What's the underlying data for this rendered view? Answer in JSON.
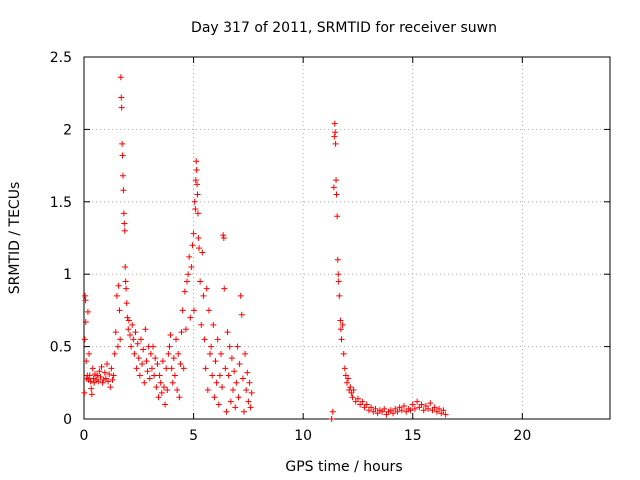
{
  "chart_data": {
    "type": "scatter",
    "title": "Day 317 of 2011, SRMTID for receiver suwn",
    "xlabel": "GPS time / hours",
    "ylabel": "SRMTID / TECUs",
    "xlim": [
      0,
      24
    ],
    "ylim": [
      0,
      2.5
    ],
    "x_ticks": [
      0,
      5,
      10,
      15,
      20
    ],
    "x_tick_labels": [
      "0",
      "5",
      "10",
      "15",
      "20"
    ],
    "y_ticks": [
      0,
      0.5,
      1,
      1.5,
      2,
      2.5
    ],
    "y_tick_labels": [
      "0",
      "0.5",
      "1",
      "1.5",
      "2",
      "2.5"
    ],
    "grid": true,
    "marker": "+",
    "series": [
      {
        "name": "SRMTID",
        "color": "#ff0000",
        "points": [
          [
            0.02,
            0.18
          ],
          [
            0.04,
            0.55
          ],
          [
            0.05,
            0.85
          ],
          [
            0.07,
            0.82
          ],
          [
            0.08,
            0.67
          ],
          [
            0.1,
            0.4
          ],
          [
            0.12,
            0.28
          ],
          [
            0.15,
            0.3
          ],
          [
            0.18,
            0.74
          ],
          [
            0.2,
            0.27
          ],
          [
            0.23,
            0.45
          ],
          [
            0.26,
            0.3
          ],
          [
            0.3,
            0.26
          ],
          [
            0.33,
            0.21
          ],
          [
            0.36,
            0.17
          ],
          [
            0.4,
            0.35
          ],
          [
            0.43,
            0.28
          ],
          [
            0.46,
            0.25
          ],
          [
            0.5,
            0.31
          ],
          [
            0.55,
            0.27
          ],
          [
            0.6,
            0.3
          ],
          [
            0.65,
            0.26
          ],
          [
            0.7,
            0.33
          ],
          [
            0.75,
            0.29
          ],
          [
            0.8,
            0.36
          ],
          [
            0.85,
            0.25
          ],
          [
            0.9,
            0.27
          ],
          [
            0.95,
            0.32
          ],
          [
            1.0,
            0.28
          ],
          [
            1.05,
            0.38
          ],
          [
            1.1,
            0.26
          ],
          [
            1.15,
            0.31
          ],
          [
            1.2,
            0.22
          ],
          [
            1.25,
            0.35
          ],
          [
            1.3,
            0.27
          ],
          [
            1.35,
            0.3
          ],
          [
            1.4,
            0.45
          ],
          [
            1.45,
            0.6
          ],
          [
            1.5,
            0.85
          ],
          [
            1.55,
            0.5
          ],
          [
            1.58,
            0.92
          ],
          [
            1.62,
            0.75
          ],
          [
            1.65,
            0.55
          ],
          [
            1.68,
            2.36
          ],
          [
            1.7,
            2.22
          ],
          [
            1.72,
            2.15
          ],
          [
            1.74,
            1.9
          ],
          [
            1.76,
            1.82
          ],
          [
            1.78,
            1.68
          ],
          [
            1.8,
            1.58
          ],
          [
            1.82,
            1.42
          ],
          [
            1.84,
            1.35
          ],
          [
            1.86,
            1.3
          ],
          [
            1.88,
            1.05
          ],
          [
            1.9,
            0.95
          ],
          [
            1.92,
            0.9
          ],
          [
            1.95,
            0.8
          ],
          [
            1.98,
            0.7
          ],
          [
            2.02,
            0.62
          ],
          [
            2.05,
            0.68
          ],
          [
            2.1,
            0.58
          ],
          [
            2.15,
            0.5
          ],
          [
            2.2,
            0.65
          ],
          [
            2.25,
            0.55
          ],
          [
            2.3,
            0.45
          ],
          [
            2.35,
            0.6
          ],
          [
            2.4,
            0.35
          ],
          [
            2.45,
            0.52
          ],
          [
            2.5,
            0.42
          ],
          [
            2.55,
            0.3
          ],
          [
            2.6,
            0.55
          ],
          [
            2.65,
            0.38
          ],
          [
            2.7,
            0.48
          ],
          [
            2.75,
            0.25
          ],
          [
            2.8,
            0.62
          ],
          [
            2.85,
            0.4
          ],
          [
            2.9,
            0.33
          ],
          [
            2.95,
            0.5
          ],
          [
            3.0,
            0.28
          ],
          [
            3.05,
            0.45
          ],
          [
            3.1,
            0.35
          ],
          [
            3.15,
            0.5
          ],
          [
            3.2,
            0.3
          ],
          [
            3.25,
            0.42
          ],
          [
            3.3,
            0.22
          ],
          [
            3.35,
            0.38
          ],
          [
            3.4,
            0.15
          ],
          [
            3.45,
            0.3
          ],
          [
            3.5,
            0.25
          ],
          [
            3.55,
            0.18
          ],
          [
            3.6,
            0.4
          ],
          [
            3.65,
            0.22
          ],
          [
            3.7,
            0.1
          ],
          [
            3.75,
            0.35
          ],
          [
            3.8,
            0.2
          ],
          [
            3.85,
            0.45
          ],
          [
            3.9,
            0.5
          ],
          [
            3.95,
            0.58
          ],
          [
            4.0,
            0.35
          ],
          [
            4.05,
            0.25
          ],
          [
            4.1,
            0.42
          ],
          [
            4.15,
            0.3
          ],
          [
            4.2,
            0.55
          ],
          [
            4.25,
            0.2
          ],
          [
            4.3,
            0.45
          ],
          [
            4.35,
            0.15
          ],
          [
            4.4,
            0.38
          ],
          [
            4.45,
            0.6
          ],
          [
            4.5,
            0.75
          ],
          [
            4.55,
            0.35
          ],
          [
            4.6,
            0.88
          ],
          [
            4.65,
            0.62
          ],
          [
            4.7,
            0.95
          ],
          [
            4.75,
            1.0
          ],
          [
            4.8,
            1.12
          ],
          [
            4.85,
            0.7
          ],
          [
            4.9,
            1.05
          ],
          [
            4.95,
            1.2
          ],
          [
            5.0,
            1.28
          ],
          [
            5.02,
            0.75
          ],
          [
            5.05,
            1.5
          ],
          [
            5.08,
            1.45
          ],
          [
            5.1,
            1.65
          ],
          [
            5.12,
            1.78
          ],
          [
            5.14,
            1.72
          ],
          [
            5.16,
            1.62
          ],
          [
            5.18,
            1.55
          ],
          [
            5.2,
            1.42
          ],
          [
            5.22,
            1.25
          ],
          [
            5.25,
            1.18
          ],
          [
            5.3,
            0.95
          ],
          [
            5.35,
            0.65
          ],
          [
            5.4,
            1.15
          ],
          [
            5.45,
            0.85
          ],
          [
            5.5,
            0.55
          ],
          [
            5.55,
            0.35
          ],
          [
            5.6,
            0.9
          ],
          [
            5.65,
            0.2
          ],
          [
            5.7,
            0.75
          ],
          [
            5.75,
            0.45
          ],
          [
            5.8,
            0.5
          ],
          [
            5.85,
            0.3
          ],
          [
            5.9,
            0.65
          ],
          [
            5.95,
            0.15
          ],
          [
            6.0,
            0.4
          ],
          [
            6.05,
            0.25
          ],
          [
            6.1,
            0.55
          ],
          [
            6.15,
            0.1
          ],
          [
            6.2,
            0.3
          ],
          [
            6.25,
            0.45
          ],
          [
            6.3,
            0.22
          ],
          [
            6.35,
            1.27
          ],
          [
            6.38,
            1.25
          ],
          [
            6.4,
            0.9
          ],
          [
            6.45,
            0.35
          ],
          [
            6.5,
            0.05
          ],
          [
            6.55,
            0.6
          ],
          [
            6.6,
            0.3
          ],
          [
            6.65,
            0.5
          ],
          [
            6.7,
            0.12
          ],
          [
            6.75,
            0.42
          ],
          [
            6.8,
            0.2
          ],
          [
            6.85,
            0.33
          ],
          [
            6.9,
            0.08
          ],
          [
            6.95,
            0.25
          ],
          [
            7.0,
            0.5
          ],
          [
            7.05,
            0.15
          ],
          [
            7.1,
            0.38
          ],
          [
            7.15,
            0.85
          ],
          [
            7.2,
            0.72
          ],
          [
            7.25,
            0.28
          ],
          [
            7.3,
            0.05
          ],
          [
            7.35,
            0.45
          ],
          [
            7.4,
            0.2
          ],
          [
            7.45,
            0.32
          ],
          [
            7.5,
            0.12
          ],
          [
            7.55,
            0.25
          ],
          [
            7.6,
            0.08
          ],
          [
            7.65,
            0.18
          ],
          [
            11.3,
            0.0
          ],
          [
            11.35,
            0.05
          ],
          [
            11.4,
            1.6
          ],
          [
            11.42,
            1.95
          ],
          [
            11.44,
            2.04
          ],
          [
            11.46,
            1.98
          ],
          [
            11.48,
            1.9
          ],
          [
            11.5,
            1.65
          ],
          [
            11.52,
            1.55
          ],
          [
            11.55,
            1.4
          ],
          [
            11.58,
            1.1
          ],
          [
            11.6,
            1.0
          ],
          [
            11.62,
            0.95
          ],
          [
            11.65,
            0.85
          ],
          [
            11.7,
            0.68
          ],
          [
            11.72,
            0.62
          ],
          [
            11.75,
            0.55
          ],
          [
            11.8,
            0.65
          ],
          [
            11.85,
            0.45
          ],
          [
            11.9,
            0.35
          ],
          [
            11.95,
            0.3
          ],
          [
            12.0,
            0.25
          ],
          [
            12.05,
            0.28
          ],
          [
            12.1,
            0.2
          ],
          [
            12.15,
            0.22
          ],
          [
            12.2,
            0.18
          ],
          [
            12.25,
            0.15
          ],
          [
            12.3,
            0.2
          ],
          [
            12.4,
            0.12
          ],
          [
            12.5,
            0.14
          ],
          [
            12.6,
            0.1
          ],
          [
            12.7,
            0.12
          ],
          [
            12.8,
            0.08
          ],
          [
            12.9,
            0.1
          ],
          [
            13.0,
            0.06
          ],
          [
            13.1,
            0.08
          ],
          [
            13.2,
            0.05
          ],
          [
            13.3,
            0.07
          ],
          [
            13.4,
            0.04
          ],
          [
            13.5,
            0.06
          ],
          [
            13.6,
            0.05
          ],
          [
            13.7,
            0.07
          ],
          [
            13.8,
            0.03
          ],
          [
            13.9,
            0.05
          ],
          [
            14.0,
            0.06
          ],
          [
            14.1,
            0.04
          ],
          [
            14.2,
            0.07
          ],
          [
            14.3,
            0.05
          ],
          [
            14.4,
            0.08
          ],
          [
            14.5,
            0.06
          ],
          [
            14.6,
            0.09
          ],
          [
            14.7,
            0.05
          ],
          [
            14.8,
            0.07
          ],
          [
            14.9,
            0.06
          ],
          [
            15.0,
            0.1
          ],
          [
            15.1,
            0.07
          ],
          [
            15.2,
            0.12
          ],
          [
            15.3,
            0.08
          ],
          [
            15.4,
            0.1
          ],
          [
            15.5,
            0.06
          ],
          [
            15.6,
            0.09
          ],
          [
            15.7,
            0.07
          ],
          [
            15.8,
            0.11
          ],
          [
            15.9,
            0.06
          ],
          [
            16.0,
            0.08
          ],
          [
            16.1,
            0.05
          ],
          [
            16.2,
            0.07
          ],
          [
            16.3,
            0.04
          ],
          [
            16.4,
            0.06
          ],
          [
            16.5,
            0.03
          ]
        ]
      }
    ]
  }
}
